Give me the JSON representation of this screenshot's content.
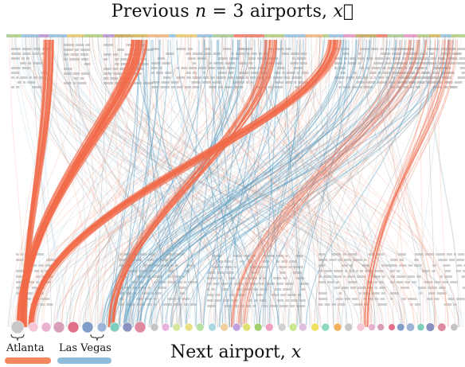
{
  "top_title": {
    "prefix": "Previous ",
    "var": "n",
    "equals": " = 3 airports, ",
    "vec": "x⃗"
  },
  "bottom_title": {
    "prefix": "Next airport, ",
    "var": "x"
  },
  "legend": [
    {
      "label": "Atlanta",
      "color": "#f4875f"
    },
    {
      "label": "Las Vegas",
      "color": "#8fbcd9"
    }
  ],
  "colors": {
    "atlanta_flow": "#f26b4a",
    "atlanta_flow_light": "#f7a68c",
    "vegas_flow": "#5a9ec0",
    "vegas_flow_light": "#a9cde2",
    "gray_flow": "#8a8a8a",
    "gray_label": "#bdbdbd"
  },
  "bottom_airport_colors": [
    "#c8c8c8",
    "#f4c6d8",
    "#e9b0cf",
    "#d8a0b8",
    "#e3708a",
    "#7f9dc8",
    "#9fb5d8",
    "#7fcfbf",
    "#8a90c0",
    "#e08aa0",
    "#c4c4c4",
    "#e8b3e0",
    "#d6e8a0",
    "#e8e080",
    "#b8e0a0",
    "#a8d8e0",
    "#f0d0a0",
    "#c0a0e0",
    "#e0e070",
    "#a0d070",
    "#f0a0c0",
    "#d0d0d0",
    "#c8e890",
    "#e0c0e0",
    "#f0e060",
    "#90d8c0",
    "#f0b060"
  ]
}
